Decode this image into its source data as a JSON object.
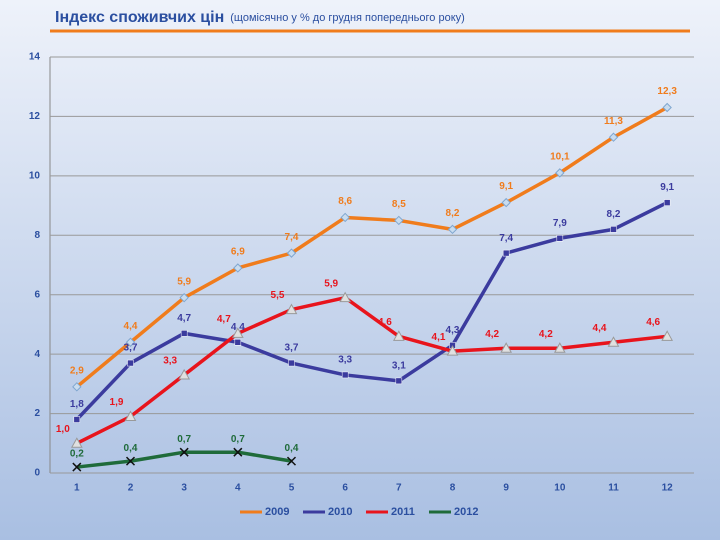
{
  "chart_data": {
    "type": "line",
    "title": "Індекс споживчих цін",
    "subtitle": "(щомісячно у % до грудня попереднього року)",
    "categories": [
      "1",
      "2",
      "3",
      "4",
      "5",
      "6",
      "7",
      "8",
      "9",
      "10",
      "11",
      "12"
    ],
    "ylim": [
      0,
      14
    ],
    "yticks": [
      0,
      2,
      4,
      6,
      8,
      10,
      12,
      14
    ],
    "grid": true,
    "series": [
      {
        "name": "2009",
        "color": "#f07c1c",
        "values": [
          2.9,
          4.4,
          5.9,
          6.9,
          7.4,
          8.6,
          8.5,
          8.2,
          9.1,
          10.1,
          11.3,
          12.3
        ],
        "value_labels": [
          "2,9",
          "4,4",
          "5,9",
          "6,9",
          "7,4",
          "8,6",
          "8,5",
          "8,2",
          "9,1",
          "10,1",
          "11,3",
          "12,3"
        ]
      },
      {
        "name": "2010",
        "color": "#3b3b9e",
        "values": [
          1.8,
          3.7,
          4.7,
          4.4,
          3.7,
          3.3,
          3.1,
          4.3,
          7.4,
          7.9,
          8.2,
          9.1
        ],
        "value_labels": [
          "1,8",
          "3,7",
          "4,7",
          "4,4",
          "3,7",
          "3,3",
          "3,1",
          "4,3",
          "7,4",
          "7,9",
          "8,2",
          "9,1"
        ]
      },
      {
        "name": "2011",
        "color": "#e8141c",
        "values": [
          1.0,
          1.9,
          3.3,
          4.7,
          5.5,
          5.9,
          4.6,
          4.1,
          4.2,
          4.2,
          4.4,
          4.6
        ],
        "value_labels": [
          "1,0",
          "1,9",
          "3,3",
          "4,7",
          "5,5",
          "5,9",
          "4,6",
          "4,1",
          "4,2",
          "4,2",
          "4,4",
          "4,6"
        ]
      },
      {
        "name": "2012",
        "color": "#1f6b3a",
        "values": [
          0.2,
          0.4,
          0.7,
          0.7,
          0.4,
          null,
          null,
          null,
          null,
          null,
          null,
          null
        ],
        "value_labels": [
          "0,2",
          "0,4",
          "0,7",
          "0,7",
          "0,4",
          null,
          null,
          null,
          null,
          null,
          null,
          null
        ]
      }
    ]
  }
}
